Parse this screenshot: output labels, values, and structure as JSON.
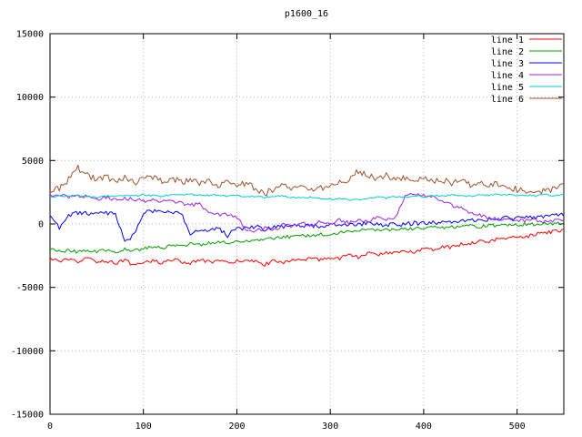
{
  "chart_data": {
    "type": "line",
    "title": "p1600_16",
    "xlabel": "",
    "ylabel": "",
    "xlim": [
      0,
      550
    ],
    "ylim": [
      -15000,
      15000
    ],
    "xticks": [
      0,
      100,
      200,
      300,
      400,
      500
    ],
    "yticks": [
      -15000,
      -10000,
      -5000,
      0,
      5000,
      10000,
      15000
    ],
    "grid": true,
    "legend_position": "top-right-inside",
    "x_step": 10,
    "series": [
      {
        "name": "line 1",
        "color": "#ff0000",
        "noise": 140,
        "values": [
          -2750,
          -2900,
          -2850,
          -3000,
          -2700,
          -2950,
          -2900,
          -3100,
          -2800,
          -3300,
          -3000,
          -2900,
          -3050,
          -2800,
          -2950,
          -3100,
          -2850,
          -3000,
          -2900,
          -3100,
          -2950,
          -2800,
          -3000,
          -3200,
          -2900,
          -3000,
          -2800,
          -2950,
          -2700,
          -2850,
          -2600,
          -2700,
          -2400,
          -2650,
          -2300,
          -2450,
          -2200,
          -2350,
          -2100,
          -2200,
          -1900,
          -2000,
          -1750,
          -1850,
          -1600,
          -1500,
          -1350,
          -1400,
          -1150,
          -1200,
          -950,
          -1000,
          -800,
          -700,
          -600,
          -500
        ]
      },
      {
        "name": "line 2",
        "color": "#00a000",
        "noise": 130,
        "values": [
          -2000,
          -2150,
          -2100,
          -2200,
          -2050,
          -2150,
          -2100,
          -2250,
          -2000,
          -2100,
          -1950,
          -1800,
          -1900,
          -1700,
          -1750,
          -1550,
          -1650,
          -1500,
          -1400,
          -1500,
          -1300,
          -1350,
          -1200,
          -1250,
          -1100,
          -1000,
          -1050,
          -900,
          -950,
          -800,
          -850,
          -700,
          -600,
          -650,
          -300,
          -550,
          -450,
          -500,
          -350,
          -400,
          -300,
          -250,
          -300,
          -200,
          -250,
          -150,
          -200,
          -100,
          -150,
          -50,
          -100,
          0,
          -50,
          50,
          0,
          100
        ]
      },
      {
        "name": "line 3",
        "color": "#0000ff",
        "noise": 180,
        "values": [
          800,
          -400,
          600,
          900,
          800,
          1000,
          900,
          850,
          -1500,
          -800,
          900,
          1000,
          850,
          950,
          900,
          -700,
          -500,
          -600,
          -400,
          -900,
          -300,
          -400,
          -200,
          -500,
          -100,
          -300,
          0,
          -200,
          -100,
          -250,
          -50,
          -150,
          0,
          -100,
          100,
          0,
          -100,
          50,
          -50,
          100,
          0,
          150,
          100,
          250,
          150,
          300,
          200,
          400,
          300,
          500,
          400,
          550,
          450,
          600,
          650,
          700
        ]
      },
      {
        "name": "line 4",
        "color": "#a020f0",
        "noise": 150,
        "values": [
          2200,
          2300,
          2150,
          2250,
          2100,
          2000,
          2100,
          1950,
          2050,
          1900,
          1800,
          1900,
          1750,
          1800,
          1650,
          1500,
          1550,
          800,
          700,
          750,
          500,
          -400,
          -600,
          -300,
          -500,
          0,
          -200,
          100,
          -100,
          200,
          0,
          300,
          100,
          400,
          200,
          500,
          300,
          600,
          2200,
          2300,
          2250,
          2100,
          1900,
          1500,
          1200,
          900,
          700,
          500,
          400,
          300,
          350,
          250,
          300,
          200,
          250,
          300
        ]
      },
      {
        "name": "line 5",
        "color": "#00cdcd",
        "noise": 70,
        "values": [
          2100,
          2200,
          2150,
          2250,
          2200,
          2100,
          2200,
          2150,
          2250,
          2200,
          2300,
          2250,
          2200,
          2300,
          2250,
          2350,
          2300,
          2250,
          2300,
          2200,
          2250,
          2150,
          2200,
          2100,
          2150,
          2200,
          2100,
          2050,
          2100,
          2000,
          1950,
          2000,
          1900,
          1950,
          2000,
          2100,
          2050,
          2150,
          2100,
          2200,
          2150,
          2250,
          2200,
          2300,
          2250,
          2200,
          2300,
          2250,
          2350,
          2300,
          2250,
          2300,
          2200,
          2300,
          2250,
          2350
        ]
      },
      {
        "name": "line 6",
        "color": "#a0522d",
        "noise": 260,
        "values": [
          2500,
          2800,
          3500,
          4400,
          3800,
          3500,
          3700,
          3400,
          3600,
          3300,
          3500,
          3700,
          3400,
          3600,
          3300,
          3500,
          3200,
          3400,
          3100,
          3300,
          3000,
          3200,
          2800,
          2400,
          2800,
          3000,
          2700,
          2900,
          2600,
          2800,
          3000,
          3200,
          3400,
          4200,
          3800,
          3600,
          3800,
          3500,
          3700,
          3400,
          3600,
          3300,
          3500,
          3200,
          3400,
          3100,
          3300,
          3000,
          3200,
          2900,
          2700,
          2500,
          2300,
          2600,
          2800,
          3000
        ]
      }
    ]
  }
}
